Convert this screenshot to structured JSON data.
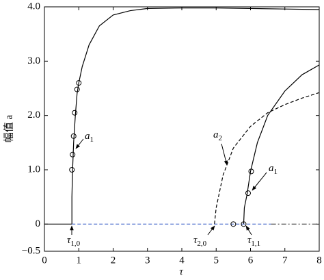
{
  "chart_data": {
    "type": "line",
    "x_label": "τ",
    "y_label": "幅值 a",
    "xlim": [
      0,
      8
    ],
    "ylim": [
      -0.5,
      4
    ],
    "xticks": [
      0,
      1,
      2,
      3,
      4,
      5,
      6,
      7,
      8
    ],
    "yticks": [
      {
        "value": -0.5,
        "label": "−0.5"
      },
      0,
      {
        "value": 1,
        "label": "1.0"
      },
      {
        "value": 2,
        "label": "2.0"
      },
      {
        "value": 3,
        "label": "3.0"
      },
      {
        "value": 4,
        "label": "4.0"
      }
    ],
    "series": [
      {
        "color": "#000000",
        "style": "solid",
        "x": [
          0.8,
          0.8,
          0.82,
          0.85,
          0.9,
          0.95,
          1.0,
          1.1,
          1.3,
          1.6,
          2.0,
          2.5,
          3,
          4,
          5,
          6,
          7,
          8
        ],
        "values": [
          0,
          0.5,
          1.0,
          1.5,
          2.0,
          2.4,
          2.6,
          2.9,
          3.3,
          3.65,
          3.85,
          3.93,
          3.97,
          3.98,
          3.98,
          3.97,
          3.96,
          3.95
        ]
      },
      {
        "color": "#000000",
        "style": "solid",
        "x": [
          5.8,
          5.82,
          5.9,
          6.0,
          6.2,
          6.5,
          7,
          7.5,
          8
        ],
        "values": [
          0,
          0.3,
          0.55,
          0.97,
          1.5,
          2.0,
          2.45,
          2.75,
          2.93
        ]
      },
      {
        "color": "#000000",
        "style": "dashed",
        "x": [
          4.95,
          5.0,
          5.2,
          5.5,
          6,
          6.5,
          7,
          7.5,
          8
        ],
        "values": [
          0,
          0.3,
          0.9,
          1.4,
          1.8,
          2.05,
          2.2,
          2.32,
          2.42
        ]
      },
      {
        "color": "#000000",
        "style": "solid",
        "x": [
          0,
          0.8
        ],
        "values": [
          0,
          0
        ]
      },
      {
        "color": "#3a5fc8",
        "style": "dashed",
        "x": [
          0.8,
          6.6
        ],
        "values": [
          0,
          0
        ]
      },
      {
        "color": "#333333",
        "style": "dashdot",
        "x": [
          6.6,
          8
        ],
        "values": [
          0,
          0
        ]
      },
      {
        "color": "#000000",
        "style": "markers",
        "x": [
          0.8,
          0.82,
          0.85,
          0.88,
          0.95,
          1.0,
          5.5,
          5.8,
          5.93,
          6.02
        ],
        "values": [
          1.0,
          1.28,
          1.62,
          2.05,
          2.48,
          2.6,
          0,
          0,
          0.57,
          0.97
        ]
      }
    ],
    "annotations": [
      {
        "text": "a",
        "sub": "1"
      },
      {
        "text": "a",
        "sub": "2"
      },
      {
        "text": "a",
        "sub": "1"
      },
      {
        "text": "τ",
        "sub": "1,0"
      },
      {
        "text": "τ",
        "sub": "2,0"
      },
      {
        "text": "τ",
        "sub": "1,1"
      }
    ]
  }
}
